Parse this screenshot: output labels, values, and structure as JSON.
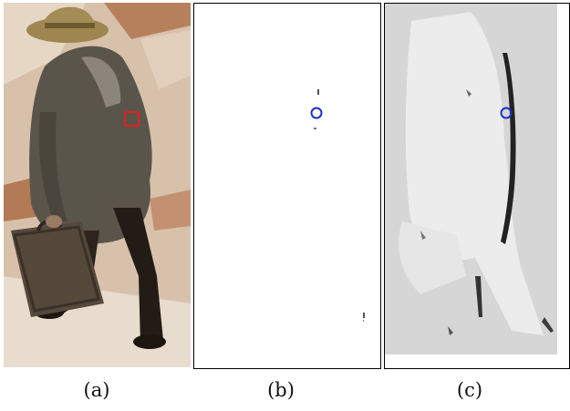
{
  "figure": {
    "panels": [
      {
        "id": "a",
        "caption": "(a)",
        "content": "photo-person-with-briefcase",
        "marker": "red-square"
      },
      {
        "id": "b",
        "caption": "(b)",
        "content": "sparse-response-map",
        "marker": "blue-circle"
      },
      {
        "id": "c",
        "caption": "(c)",
        "content": "grayscale-distance-map",
        "marker": "blue-circle"
      }
    ]
  },
  "colors": {
    "marker_red": "#e0211f",
    "marker_blue": "#1f2fd0",
    "background_tan": "#d9c2ad",
    "coat": "#59544a",
    "hat": "#a08850"
  }
}
